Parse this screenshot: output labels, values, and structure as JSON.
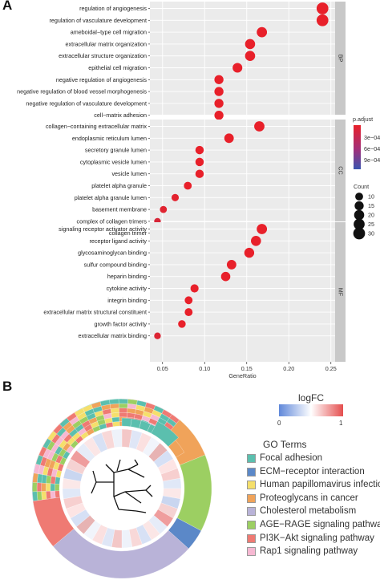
{
  "panels": {
    "a_label": "A",
    "b_label": "B"
  },
  "chart_data": [
    {
      "type": "scatter",
      "subtype": "dot-plot",
      "xlabel": "GeneRatio",
      "xlim": [
        0.035,
        0.255
      ],
      "xticks": [
        "0.05",
        "0.10",
        "0.15",
        "0.20",
        "0.25"
      ],
      "xtick_values": [
        0.05,
        0.1,
        0.15,
        0.2,
        0.25
      ],
      "color_legend": {
        "title": "p.adjust",
        "ticks": [
          "3e−04",
          "6e−04",
          "9e−04"
        ],
        "tick_values": [
          0.0003,
          0.0006,
          0.0009
        ],
        "low_color": "#e8202a",
        "high_color": "#3a55b0"
      },
      "size_legend": {
        "title": "Count",
        "values": [
          10,
          15,
          20,
          25,
          30
        ]
      },
      "facets": [
        {
          "name": "BP",
          "terms": [
            {
              "label": "regulation of angiogenesis",
              "x": 0.24,
              "count": 30,
              "p": 5e-05
            },
            {
              "label": "regulation of vasculature development",
              "x": 0.24,
              "count": 30,
              "p": 5e-05
            },
            {
              "label": "ameboidal−type cell migration",
              "x": 0.168,
              "count": 21,
              "p": 5e-05
            },
            {
              "label": "extracellular matrix organization",
              "x": 0.154,
              "count": 20,
              "p": 5e-05
            },
            {
              "label": "extracellular structure organization",
              "x": 0.154,
              "count": 20,
              "p": 5e-05
            },
            {
              "label": "epithelial cell migration",
              "x": 0.139,
              "count": 18,
              "p": 5e-05
            },
            {
              "label": "negative regulation of angiogenesis",
              "x": 0.117,
              "count": 15,
              "p": 5e-05
            },
            {
              "label": "negative regulation of blood vessel morphogenesis",
              "x": 0.117,
              "count": 15,
              "p": 5e-05
            },
            {
              "label": "negative regulation of vasculature development",
              "x": 0.117,
              "count": 15,
              "p": 5e-05
            },
            {
              "label": "cell−matrix adhesion",
              "x": 0.117,
              "count": 15,
              "p": 5e-05
            }
          ]
        },
        {
          "name": "CC",
          "terms": [
            {
              "label": "collagen−containing extracellular matrix",
              "x": 0.165,
              "count": 21,
              "p": 5e-05
            },
            {
              "label": "endoplasmic reticulum lumen",
              "x": 0.129,
              "count": 17,
              "p": 5e-05
            },
            {
              "label": "secretory granule lumen",
              "x": 0.094,
              "count": 12,
              "p": 5e-05
            },
            {
              "label": "cytoplasmic vesicle lumen",
              "x": 0.094,
              "count": 12,
              "p": 5e-05
            },
            {
              "label": "vesicle lumen",
              "x": 0.094,
              "count": 12,
              "p": 5e-05
            },
            {
              "label": "platelet alpha granule",
              "x": 0.08,
              "count": 10,
              "p": 5e-05
            },
            {
              "label": "platelet alpha granule lumen",
              "x": 0.065,
              "count": 8,
              "p": 8e-05
            },
            {
              "label": "basement membrane",
              "x": 0.051,
              "count": 7,
              "p": 0.0001
            },
            {
              "label": "complex of collagen trimers",
              "x": 0.044,
              "count": 6,
              "p": 0.00015
            },
            {
              "label": "collagen trimer",
              "x": 0.044,
              "count": 6,
              "p": 0.0011
            }
          ]
        },
        {
          "name": "MF",
          "terms": [
            {
              "label": "signaling receptor activator activity",
              "x": 0.168,
              "count": 21,
              "p": 5e-05
            },
            {
              "label": "receptor ligand activity",
              "x": 0.161,
              "count": 20,
              "p": 5e-05
            },
            {
              "label": "glycosaminoglycan binding",
              "x": 0.153,
              "count": 19,
              "p": 5e-05
            },
            {
              "label": "sulfur compound binding",
              "x": 0.132,
              "count": 17,
              "p": 5e-05
            },
            {
              "label": "heparin binding",
              "x": 0.125,
              "count": 16,
              "p": 5e-05
            },
            {
              "label": "cytokine activity",
              "x": 0.088,
              "count": 11,
              "p": 5e-05
            },
            {
              "label": "integrin binding",
              "x": 0.081,
              "count": 10,
              "p": 5e-05
            },
            {
              "label": "extracellular matrix structural constituent",
              "x": 0.081,
              "count": 10,
              "p": 5e-05
            },
            {
              "label": "growth factor activity",
              "x": 0.073,
              "count": 9,
              "p": 5e-05
            },
            {
              "label": "extracellular matrix binding",
              "x": 0.044,
              "count": 6,
              "p": 0.00012
            }
          ]
        }
      ]
    },
    {
      "type": "heatmap",
      "subtype": "circular",
      "logfc_legend": {
        "title": "logFC",
        "ticks": [
          "0",
          "1"
        ],
        "low_color": "#4f7bd6",
        "mid_color": "#ffffff",
        "high_color": "#e23b3b"
      },
      "go_legend": {
        "title": "GO Terms",
        "items": [
          {
            "label": "Focal adhesion",
            "color": "#5bbfae"
          },
          {
            "label": "ECM−receptor interaction",
            "color": "#5b88c8"
          },
          {
            "label": "Human papillomavirus infection",
            "color": "#f5df6b"
          },
          {
            "label": "Proteoglycans in cancer",
            "color": "#f0a35a"
          },
          {
            "label": "Cholesterol metabolism",
            "color": "#b9b3d8"
          },
          {
            "label": "AGE−RAGE signaling pathway",
            "color": "#9ccf62"
          },
          {
            "label": "PI3K−Akt signaling pathway",
            "color": "#ef7a73"
          },
          {
            "label": "Rap1 signaling pathway",
            "color": "#f6b8d2"
          }
        ]
      }
    }
  ]
}
